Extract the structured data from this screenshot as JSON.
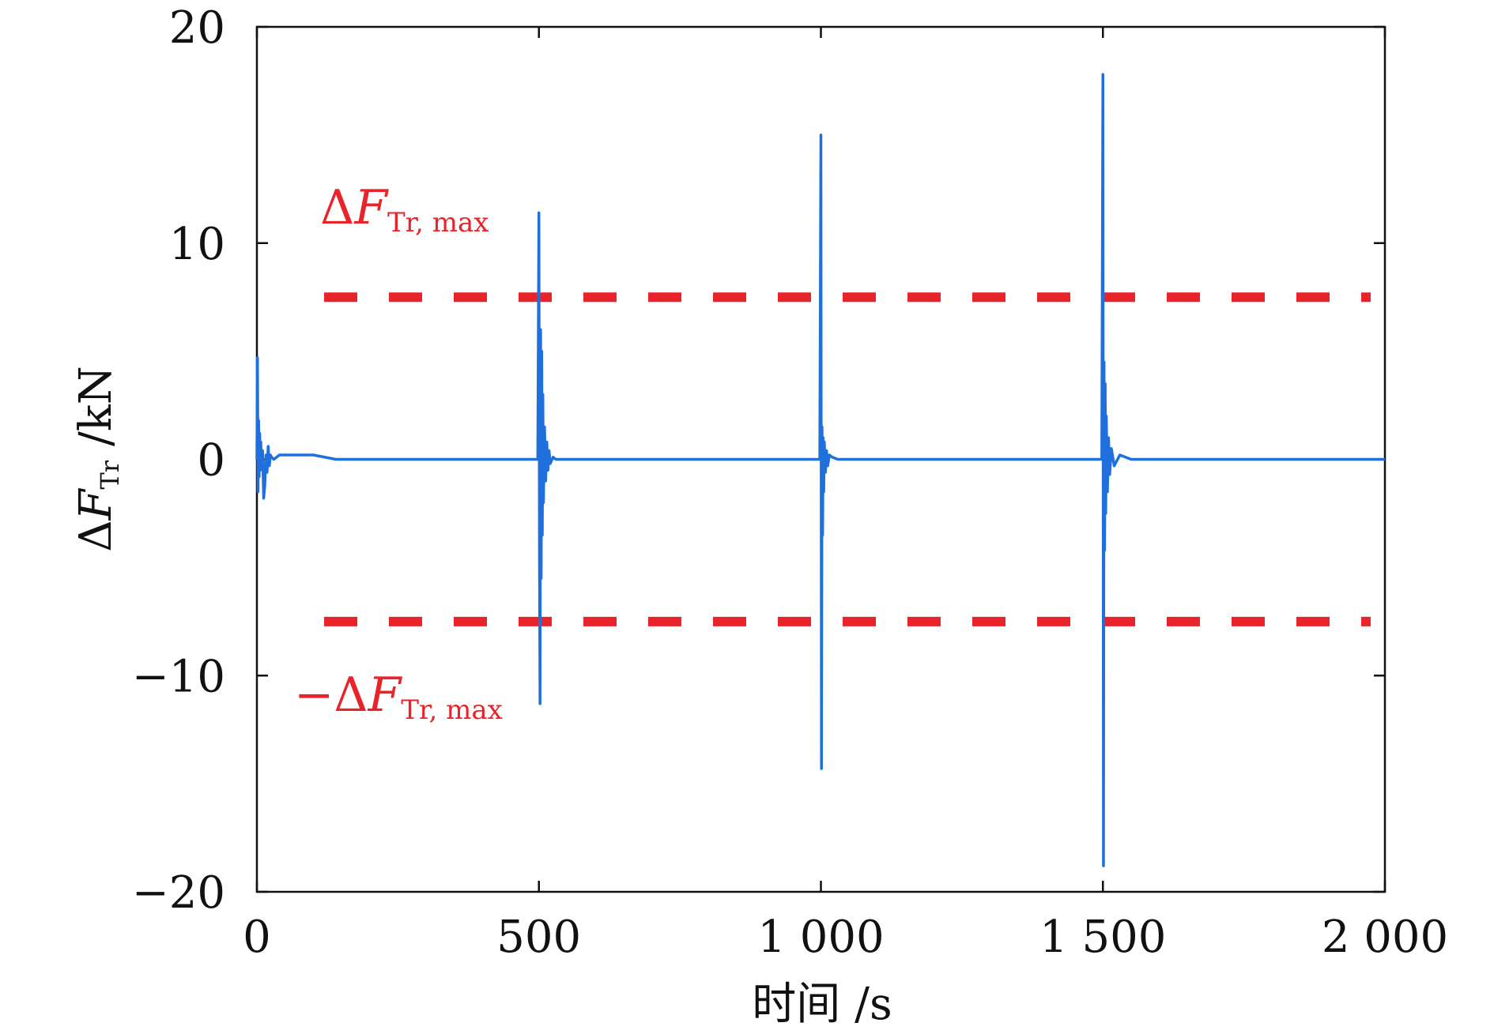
{
  "chart_data": {
    "type": "line",
    "xlabel": "时间 /s",
    "ylabel": "ΔF_Tr /kN",
    "ylabel_parts": {
      "delta": "Δ",
      "var": "F",
      "sub": "Tr",
      "unit": " /kN"
    },
    "xlim": [
      0,
      2000
    ],
    "ylim": [
      -20,
      20
    ],
    "x_ticks": [
      0,
      500,
      1000,
      1500,
      2000
    ],
    "x_tick_labels": [
      "0",
      "500",
      "1 000",
      "1 500",
      "2 000"
    ],
    "y_ticks": [
      -20,
      -10,
      0,
      10,
      20
    ],
    "y_tick_labels": [
      "−20",
      "−10",
      "0",
      "10",
      "20"
    ],
    "grid": false,
    "series": [
      {
        "color": "#1f6fdc",
        "x": [
          0,
          1,
          2,
          3,
          4,
          5,
          6,
          7,
          8,
          10,
          12,
          14,
          16,
          18,
          20,
          22,
          24,
          26,
          30,
          40,
          60,
          80,
          100,
          120,
          140,
          160,
          200,
          300,
          400,
          490,
          498,
          500,
          501,
          502,
          503,
          504,
          505,
          506,
          507,
          508,
          510,
          512,
          514,
          516,
          518,
          520,
          525,
          530,
          540,
          600,
          800,
          990,
          998,
          1000,
          1001,
          1002,
          1003,
          1004,
          1005,
          1006,
          1008,
          1010,
          1012,
          1015,
          1020,
          1030,
          1100,
          1300,
          1490,
          1498,
          1500,
          1501,
          1502,
          1503,
          1504,
          1505,
          1506,
          1508,
          1510,
          1512,
          1515,
          1520,
          1530,
          1550,
          1600,
          1800,
          2000
        ],
        "y": [
          0,
          4.7,
          -1.5,
          1.8,
          -0.8,
          1.2,
          -0.5,
          0.8,
          -0.3,
          0.4,
          -1.8,
          -1.2,
          0.2,
          -0.6,
          0.6,
          -0.3,
          0.2,
          0.1,
          0.0,
          0.2,
          0.2,
          0.2,
          0.2,
          0.1,
          0.0,
          0.0,
          0.0,
          0.0,
          0.0,
          0.0,
          0.0,
          11.4,
          -4.4,
          -11.3,
          6.0,
          -5.5,
          5.0,
          -3.5,
          3.0,
          -2.0,
          1.5,
          -1.0,
          0.8,
          -0.5,
          0.4,
          -0.2,
          0.1,
          0.0,
          0.0,
          0.0,
          0.0,
          0.0,
          0.0,
          15.0,
          -14.3,
          1.5,
          -3.5,
          1.0,
          -1.5,
          0.8,
          -0.6,
          0.4,
          -0.3,
          0.2,
          0.1,
          0.0,
          0.0,
          0.0,
          0.0,
          0.0,
          17.8,
          -18.8,
          4.5,
          -4.2,
          3.5,
          -2.5,
          2.0,
          -1.5,
          1.0,
          -0.7,
          0.5,
          -0.3,
          0.2,
          0.0,
          0.0,
          0.0,
          0.0
        ]
      }
    ],
    "threshold_lines": [
      {
        "y": 7.5,
        "color": "#e8232a",
        "style": "dashed"
      },
      {
        "y": -7.5,
        "color": "#e8232a",
        "style": "dashed"
      }
    ],
    "annotations": [
      {
        "id": "max",
        "prefix": "",
        "delta": "Δ",
        "var": "F",
        "sub": "Tr, max",
        "color": "#e8232a"
      },
      {
        "id": "min",
        "prefix": "−",
        "delta": "Δ",
        "var": "F",
        "sub": "Tr, max",
        "color": "#e8232a"
      }
    ]
  }
}
